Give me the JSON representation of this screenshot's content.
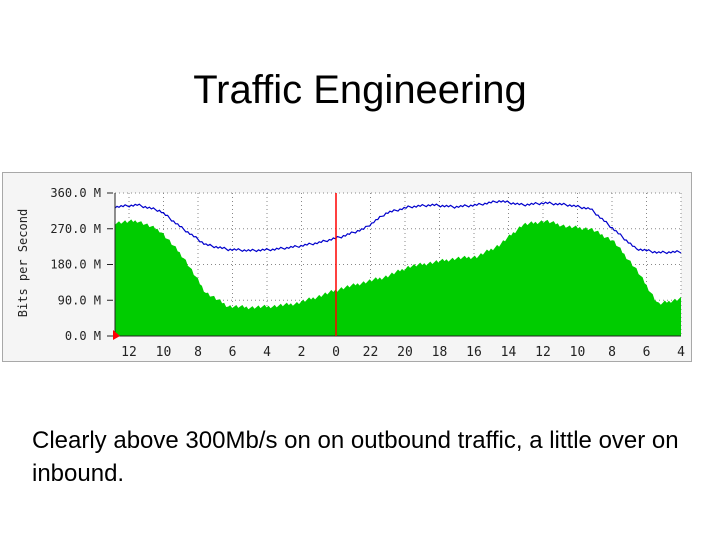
{
  "slide": {
    "title": "Traffic Engineering",
    "caption": "Clearly above 300Mb/s on on outbound traffic, a little over on inbound."
  },
  "chart_data": {
    "type": "area",
    "ylabel": "Bits per Second",
    "yticks": [
      {
        "value": 0,
        "label": "0.0 M"
      },
      {
        "value": 90,
        "label": "90.0 M"
      },
      {
        "value": 180,
        "label": "180.0 M"
      },
      {
        "value": 270,
        "label": "270.0 M"
      },
      {
        "value": 360,
        "label": "360.0 M"
      }
    ],
    "ylim": [
      0,
      360
    ],
    "xticks": [
      "12",
      "10",
      "8",
      "6",
      "4",
      "2",
      "0",
      "22",
      "20",
      "18",
      "16",
      "14",
      "12",
      "10",
      "8",
      "6",
      "4"
    ],
    "grid": true,
    "series": [
      {
        "color": "#00cc00",
        "x": [
          0,
          2,
          4,
          6,
          8,
          10,
          12,
          14,
          16,
          18,
          20,
          22,
          24,
          26,
          28,
          30,
          32,
          34,
          36,
          38,
          40,
          42,
          44,
          46,
          48,
          50
        ],
        "values": [
          285,
          290,
          265,
          200,
          110,
          75,
          72,
          75,
          82,
          100,
          120,
          135,
          150,
          175,
          185,
          195,
          200,
          230,
          280,
          290,
          275,
          270,
          240,
          170,
          80,
          95
        ]
      },
      {
        "color": "#0000cc",
        "x": [
          0,
          2,
          4,
          6,
          8,
          10,
          12,
          14,
          16,
          18,
          20,
          22,
          24,
          26,
          28,
          30,
          32,
          34,
          36,
          38,
          40,
          42,
          44,
          46,
          48,
          50
        ],
        "values": [
          325,
          330,
          315,
          270,
          230,
          218,
          215,
          218,
          225,
          235,
          250,
          270,
          310,
          325,
          330,
          325,
          330,
          340,
          330,
          335,
          330,
          320,
          270,
          220,
          210,
          212
        ]
      }
    ],
    "marker_colors": {
      "axis": "#ff0000"
    },
    "colors": {
      "axis_marker": "#ff0000",
      "inbound": "#00cc00",
      "outbound": "#0000cc"
    }
  }
}
